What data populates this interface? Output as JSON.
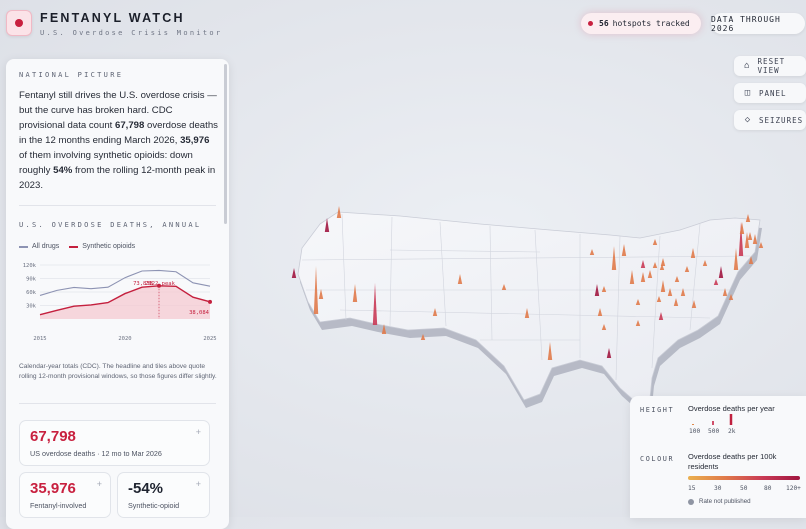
{
  "app": {
    "title": "FENTANYL WATCH",
    "subtitle": "U.S. Overdose Crisis Monitor"
  },
  "header": {
    "hotspots_count": "56",
    "hotspots_label": "hotspots tracked",
    "data_through": "DATA THROUGH 2026"
  },
  "toolbar": {
    "reset_view": "RESET VIEW",
    "panel": "PANEL",
    "seizures": "SEIZURES"
  },
  "panel": {
    "national_heading": "NATIONAL PICTURE",
    "intro_1": "Fentanyl still drives the U.S. overdose crisis — but the curve has broken hard. CDC provisional data count ",
    "intro_deaths": "67,798",
    "intro_2": " overdose deaths in the 12 months ending March 2026, ",
    "intro_synthetic": "35,976",
    "intro_3": " of them involving synthetic opioids: down roughly ",
    "intro_pct": "54%",
    "intro_4": " from the rolling 12-month peak in 2023.",
    "chart_heading": "U.S. OVERDOSE DEATHS, ANNUAL",
    "chart_note": "Calendar-year totals (CDC). The headline and tiles above quote rolling 12-month provisional windows, so those figures differ slightly.",
    "tiles": [
      {
        "value": "67,798",
        "label": "US overdose deaths · 12 mo to Mar 2026"
      },
      {
        "value": "35,976",
        "label": "Fentanyl-involved"
      },
      {
        "value": "-54%",
        "label": "Synthetic-opioid"
      }
    ]
  },
  "chart_data": {
    "type": "line",
    "x": [
      2015,
      2016,
      2017,
      2018,
      2019,
      2020,
      2021,
      2022,
      2023,
      2024,
      2025
    ],
    "series": [
      {
        "name": "All drugs",
        "color": "#8d93b3",
        "values": [
          52400,
          63600,
          70200,
          67400,
          70600,
          91800,
          106700,
          107900,
          105000,
          80400,
          73000
        ]
      },
      {
        "name": "Synthetic opioids",
        "color": "#c4203e",
        "values": [
          9600,
          19400,
          28500,
          31300,
          36400,
          56500,
          70600,
          73838,
          72700,
          48400,
          38084
        ]
      }
    ],
    "xticks": [
      "2015",
      "2020",
      "2025"
    ],
    "yticks": [
      "120k",
      "90k",
      "60k",
      "30k"
    ],
    "ylim": [
      0,
      120000
    ],
    "annotations": [
      "73,838",
      "2022 peak",
      "38,084"
    ]
  },
  "map_legend": {
    "height_key": "HEIGHT",
    "height_desc": "Overdose deaths per year",
    "height_ticks": [
      "100",
      "500",
      "2k"
    ],
    "colour_key": "COLOUR",
    "colour_desc": "Overdose deaths per 100k residents",
    "colour_ticks": [
      "15",
      "30",
      "50",
      "80",
      "120+"
    ],
    "not_published": "Rate not published",
    "gradient": [
      "#eab04f",
      "#e07a4a",
      "#c93a55",
      "#a11640"
    ]
  }
}
